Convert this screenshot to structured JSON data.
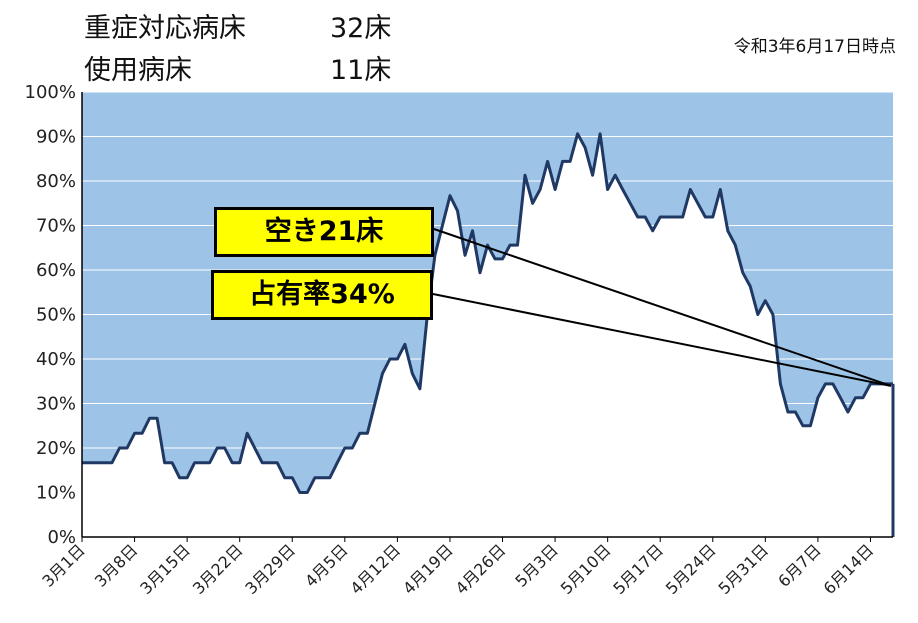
{
  "header": {
    "line1_label": "重症対応病床",
    "line1_value": "32床",
    "line2_label": "使用病床",
    "line2_value": "11床",
    "as_of": "令和3年6月17日時点"
  },
  "callouts": {
    "vacant": "空き21床",
    "rate": "占有率34%"
  },
  "colors": {
    "fill_blue": "#9dc3e6",
    "line": "#1f3864",
    "callout_bg": "#ffff00"
  },
  "chart_data": {
    "type": "area",
    "title": "",
    "xlabel": "",
    "ylabel": "",
    "ylim": [
      0,
      100
    ],
    "y_unit": "%",
    "y_ticks": [
      "0%",
      "10%",
      "20%",
      "30%",
      "40%",
      "50%",
      "60%",
      "70%",
      "80%",
      "90%",
      "100%"
    ],
    "x_ticks": [
      "3月1日",
      "3月8日",
      "3月15日",
      "3月22日",
      "3月29日",
      "4月5日",
      "4月12日",
      "4月19日",
      "4月26日",
      "5月3日",
      "5月10日",
      "5月17日",
      "5月24日",
      "5月31日",
      "6月7日",
      "6月14日"
    ],
    "x_start": "3月1日",
    "x_end": "6月17日",
    "grid": true,
    "series": [
      {
        "values": [
          16.7,
          16.7,
          16.7,
          16.7,
          16.7,
          20,
          20,
          23.3,
          23.3,
          26.7,
          26.7,
          16.7,
          16.7,
          13.3,
          13.3,
          16.7,
          16.7,
          16.7,
          20,
          20,
          16.7,
          16.7,
          23.3,
          20,
          16.7,
          16.7,
          16.7,
          13.3,
          13.3,
          10,
          10,
          13.3,
          13.3,
          13.3,
          16.7,
          20,
          20,
          23.3,
          23.3,
          30,
          36.7,
          40,
          40,
          43.3,
          36.7,
          33.3,
          50,
          63.3,
          70,
          76.7,
          73.3,
          63.3,
          68.8,
          59.4,
          65.6,
          62.5,
          62.5,
          65.6,
          65.6,
          81.3,
          75,
          78.1,
          84.4,
          78.1,
          84.4,
          84.4,
          90.6,
          87.5,
          81.3,
          90.6,
          78.1,
          81.3,
          78.1,
          75,
          71.9,
          71.9,
          68.8,
          71.9,
          71.9,
          71.9,
          71.9,
          78.1,
          75,
          71.9,
          71.9,
          78.1,
          68.8,
          65.6,
          59.4,
          56.3,
          50,
          53.1,
          50,
          34.4,
          28.1,
          28.1,
          25,
          25,
          31.3,
          34.4,
          34.4,
          31.3,
          28.1,
          31.3,
          31.3,
          34.4,
          34.4,
          34.4,
          34.4
        ]
      }
    ],
    "annotations": [
      {
        "label": "空き21床",
        "points_to_value": 34.4
      },
      {
        "label": "占有率34%",
        "points_to_value": 34.4
      }
    ]
  }
}
